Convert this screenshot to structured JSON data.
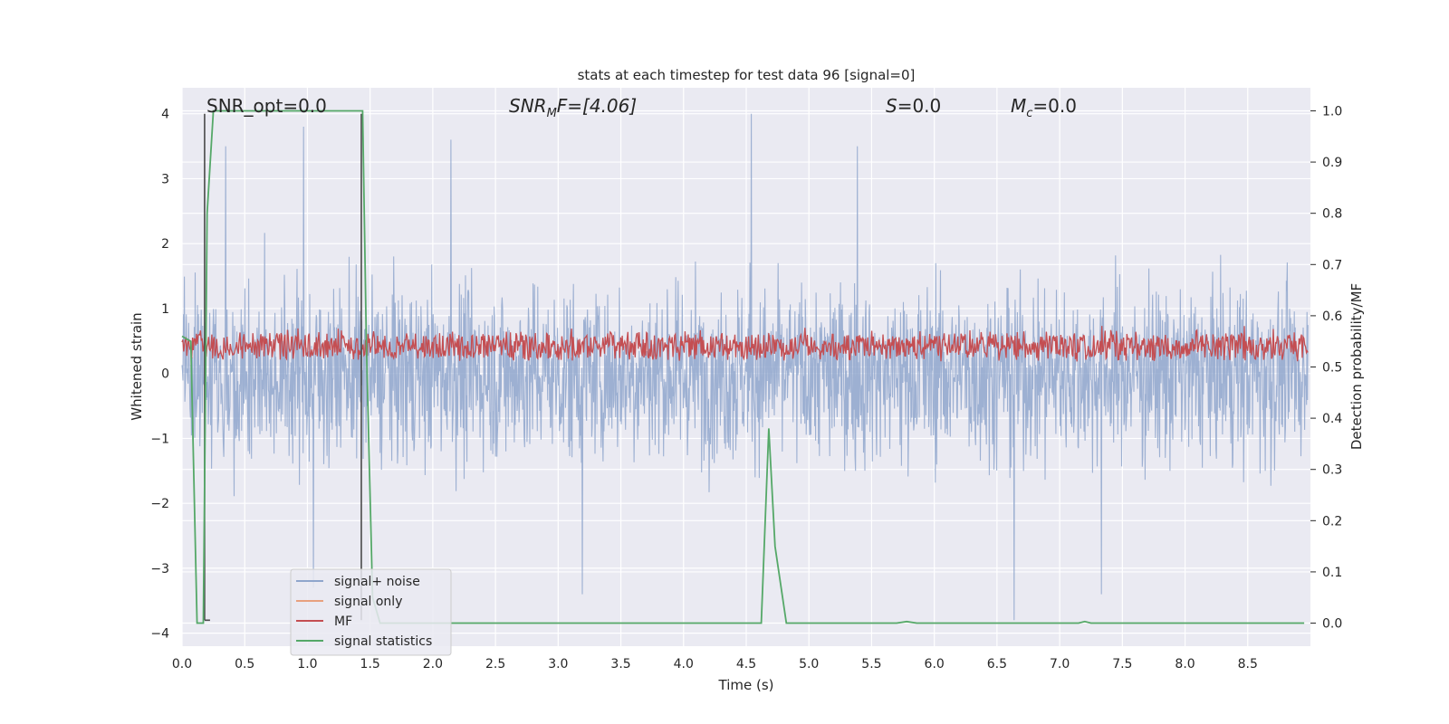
{
  "chart_data": {
    "type": "line",
    "title": "stats at each timestep for test data 96 [signal=0]",
    "xlabel": "Time (s)",
    "ylabel_left": "Whitened strain",
    "ylabel_right": "Detection probability/MF",
    "xlim": [
      0.0,
      9.0
    ],
    "ylim_left": [
      -4.2,
      4.4
    ],
    "ylim_right": [
      -0.045,
      1.045
    ],
    "x_ticks": [
      "0.0",
      "0.5",
      "1.0",
      "1.5",
      "2.0",
      "2.5",
      "3.0",
      "3.5",
      "4.0",
      "4.5",
      "5.0",
      "5.5",
      "6.0",
      "6.5",
      "7.0",
      "7.5",
      "8.0",
      "8.5"
    ],
    "x_tick_values": [
      0,
      0.5,
      1,
      1.5,
      2,
      2.5,
      3,
      3.5,
      4,
      4.5,
      5,
      5.5,
      6,
      6.5,
      7,
      7.5,
      8,
      8.5
    ],
    "y_left_ticks": [
      "4",
      "3",
      "2",
      "1",
      "0",
      "−1",
      "−2",
      "−3",
      "−4"
    ],
    "y_left_tick_values": [
      4,
      3,
      2,
      1,
      0,
      -1,
      -2,
      -3,
      -4
    ],
    "y_right_ticks": [
      "1.0",
      "0.9",
      "0.8",
      "0.7",
      "0.6",
      "0.5",
      "0.4",
      "0.3",
      "0.2",
      "0.1",
      "0.0"
    ],
    "y_right_tick_values": [
      1.0,
      0.9,
      0.8,
      0.7,
      0.6,
      0.5,
      0.4,
      0.3,
      0.2,
      0.1,
      0.0
    ],
    "grid": true,
    "legend_position": "lower-left",
    "annotations": {
      "snr_opt": "SNR_opt=0.0",
      "snr_mf_base": "SNR",
      "snr_mf_sub": "M",
      "snr_mf_rest": "F=[4.06]",
      "s_label": "S",
      "s_value": "=0.0",
      "mc_base": "M",
      "mc_sub": "c",
      "mc_value": "=0.0"
    },
    "series": [
      {
        "name": "signal+ noise",
        "color": "#8fa6cc",
        "axis": "left",
        "style": "dense noise trace, amplitude roughly ±2.5 with peaks near 4 and −3.8",
        "approx_peaks": [
          [
            0.35,
            3.5
          ],
          [
            0.97,
            3.8
          ],
          [
            2.15,
            3.6
          ],
          [
            4.55,
            4.0
          ],
          [
            5.4,
            3.5
          ],
          [
            6.65,
            -3.8
          ],
          [
            1.05,
            -3.3
          ],
          [
            3.2,
            -3.4
          ],
          [
            7.35,
            -3.4
          ]
        ]
      },
      {
        "name": "signal only",
        "color": "#e8a07e",
        "axis": "left",
        "values": []
      },
      {
        "name": "MF",
        "color": "#c44e52",
        "axis": "right",
        "style": "noisy trace between 0.5 and 0.6 with peaks up to ~0.62"
      },
      {
        "name": "signal statistics",
        "color": "#55a868",
        "axis": "right",
        "x": [
          0.0,
          0.07,
          0.12,
          0.17,
          0.2,
          0.25,
          0.3,
          1.3,
          1.4,
          1.44,
          1.47,
          1.52,
          1.58,
          2.0,
          4.0,
          4.62,
          4.68,
          4.73,
          4.82,
          5.7,
          5.78,
          5.86,
          7.15,
          7.2,
          7.25,
          8.95
        ],
        "y": [
          0.56,
          0.55,
          0.0,
          0.0,
          0.8,
          1.0,
          1.0,
          1.0,
          1.0,
          1.0,
          0.55,
          0.05,
          0.0,
          0.0,
          0.0,
          0.0,
          0.38,
          0.15,
          0.0,
          0.0,
          0.003,
          0.0,
          0.0,
          0.003,
          0.0,
          0.0
        ]
      }
    ],
    "markers": {
      "color": "#4a4a4a",
      "vertical_lines_x": [
        0.18,
        1.43
      ],
      "y_range_left": [
        -3.8,
        4.0
      ]
    }
  },
  "legend": {
    "entries": [
      {
        "label": "signal+ noise",
        "color": "#8fa6cc"
      },
      {
        "label": "signal only",
        "color": "#e8a07e"
      },
      {
        "label": "MF",
        "color": "#c44e52"
      },
      {
        "label": "signal statistics",
        "color": "#55a868"
      }
    ]
  },
  "colors": {
    "plot_background": "#eaeaf2",
    "grid": "#ffffff",
    "text": "#262626"
  }
}
